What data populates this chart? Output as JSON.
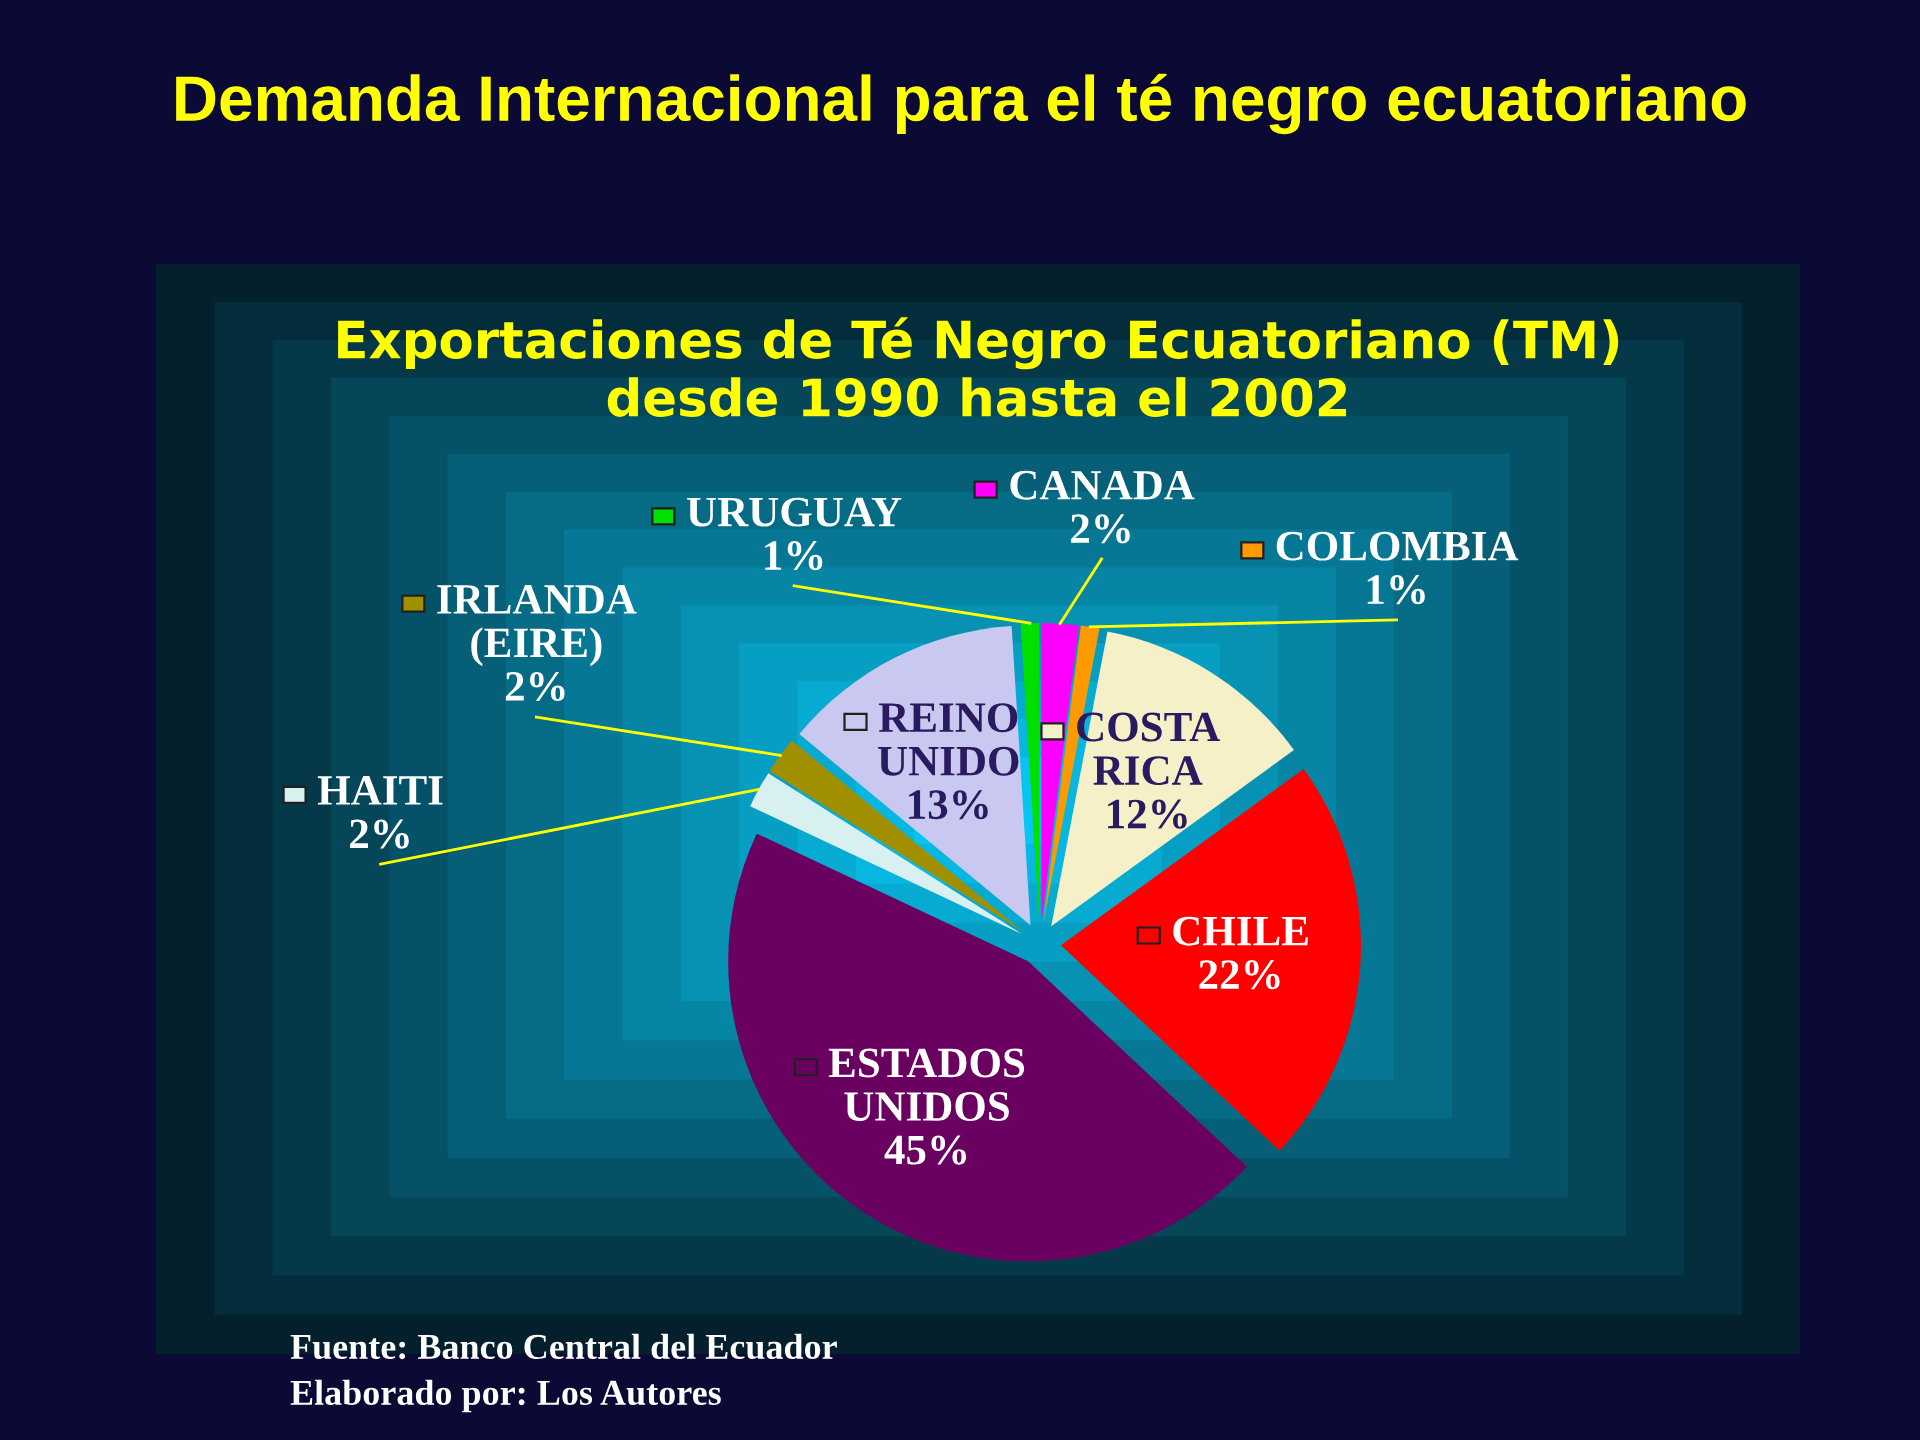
{
  "chart_data": {
    "type": "pie",
    "title": "Demanda Internacional para el té negro ecuatoriano",
    "subtitle": "Exportaciones de Té Negro Ecuatoriano (TM)\ndesde 1990 hasta el 2002",
    "categories": [
      "CANADA",
      "COLOMBIA",
      "COSTA RICA",
      "CHILE",
      "ESTADOS UNIDOS",
      "HAITI",
      "IRLANDA (EIRE)",
      "REINO UNIDO",
      "URUGUAY"
    ],
    "values": [
      2,
      1,
      12,
      22,
      45,
      2,
      2,
      13,
      1
    ],
    "value_labels": [
      "2%",
      "1%",
      "12%",
      "22%",
      "45%",
      "2%",
      "2%",
      "13%",
      "1%"
    ],
    "colors": [
      "#ff00ff",
      "#ff9900",
      "#f5f0c8",
      "#ff0000",
      "#6a0060",
      "#d8f0f0",
      "#a09000",
      "#c8c8f0",
      "#00e000"
    ],
    "legend": "center",
    "annotations": [
      "Fuente: Banco Central del Ecuador",
      "Elaborado por: Los Autores"
    ]
  }
}
